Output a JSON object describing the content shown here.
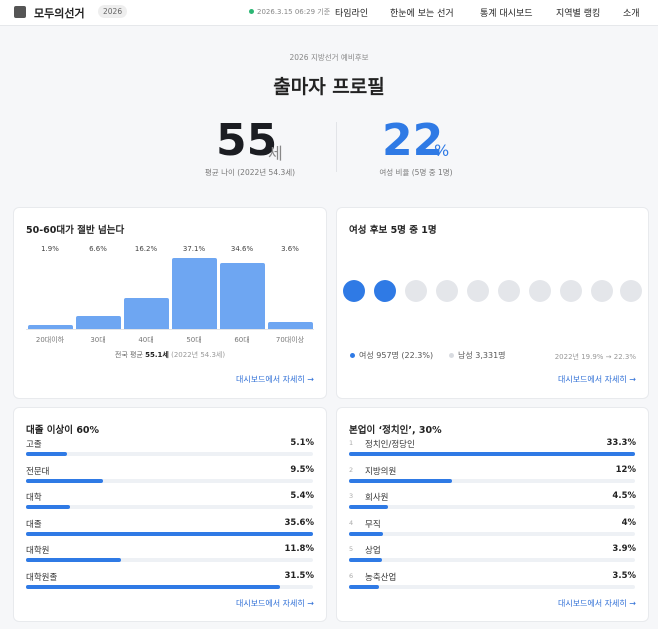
{
  "nav": {
    "brand": "모두의선거",
    "badge": "2026",
    "updated": "2026.3.15 06:29 기준",
    "links": [
      "타임라인",
      "한눈에 보는 선거",
      "통계 대시보드",
      "지역별 랭킹",
      "소개"
    ]
  },
  "hero": {
    "kicker": "2026 지방선거 예비후보",
    "title": "출마자 프로필",
    "age": {
      "value": "55",
      "unit": "세",
      "caption": "평균 나이 (2022년 54.3세)"
    },
    "women": {
      "value": "22",
      "unit": "%",
      "caption": "여성 비율 (5명 중 1명)"
    }
  },
  "age_card": {
    "title": "50-60대가 절반 넘는다",
    "categories": [
      "20대이하",
      "30대",
      "40대",
      "50대",
      "60대",
      "70대이상"
    ],
    "values": [
      1.9,
      6.6,
      16.2,
      37.1,
      34.6,
      3.6
    ],
    "value_labels": [
      "1.9%",
      "6.6%",
      "16.2%",
      "37.1%",
      "34.6%",
      "3.6%"
    ],
    "note_prefix": "전국 평균",
    "note_value": "55.1세",
    "note_suffix": "(2022년 54.3세)",
    "link": "대시보드에서 자세히 →"
  },
  "gender_card": {
    "title": "여성 후보 5명 중 1명",
    "female": "여성 957명 (22.3%)",
    "male": "남성 3,331명",
    "trend": "2022년 19.9% → 22.3%",
    "link": "대시보드에서 자세히 →"
  },
  "education_card": {
    "title": "대졸 이상이 60%",
    "categories": [
      "고졸",
      "전문대",
      "대학",
      "대졸",
      "대학원",
      "대학원졸"
    ],
    "values": [
      5.1,
      9.5,
      5.4,
      35.6,
      11.8,
      31.5
    ],
    "value_labels": [
      "5.1%",
      "9.5%",
      "5.4%",
      "35.6%",
      "11.8%",
      "31.5%"
    ],
    "link": "대시보드에서 자세히 →"
  },
  "occupation_card": {
    "title": "본업이 ‘정치인’, 30%",
    "ranks": [
      "1",
      "2",
      "3",
      "4",
      "5",
      "6"
    ],
    "categories": [
      "정치인/정당인",
      "지방의원",
      "회사원",
      "무직",
      "상업",
      "농축산업"
    ],
    "values": [
      33.3,
      12,
      4.5,
      4,
      3.9,
      3.5
    ],
    "value_labels": [
      "33.3%",
      "12%",
      "4.5%",
      "4%",
      "3.9%",
      "3.5%"
    ],
    "link": "대시보드에서 자세히 →"
  }
}
